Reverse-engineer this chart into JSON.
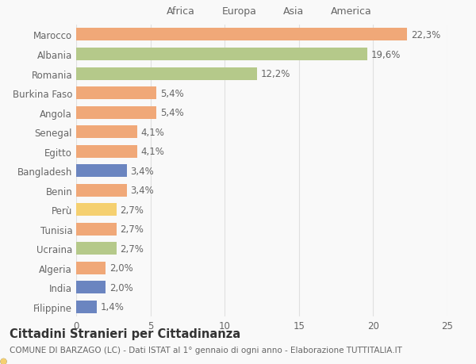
{
  "countries": [
    "Marocco",
    "Albania",
    "Romania",
    "Burkina Faso",
    "Angola",
    "Senegal",
    "Egitto",
    "Bangladesh",
    "Benin",
    "Perù",
    "Tunisia",
    "Ucraina",
    "Algeria",
    "India",
    "Filippine"
  ],
  "values": [
    22.3,
    19.6,
    12.2,
    5.4,
    5.4,
    4.1,
    4.1,
    3.4,
    3.4,
    2.7,
    2.7,
    2.7,
    2.0,
    2.0,
    1.4
  ],
  "labels": [
    "22,3%",
    "19,6%",
    "12,2%",
    "5,4%",
    "5,4%",
    "4,1%",
    "4,1%",
    "3,4%",
    "3,4%",
    "2,7%",
    "2,7%",
    "2,7%",
    "2,0%",
    "2,0%",
    "1,4%"
  ],
  "continents": [
    "Africa",
    "Europa",
    "Europa",
    "Africa",
    "Africa",
    "Africa",
    "Africa",
    "Asia",
    "Africa",
    "America",
    "Africa",
    "Europa",
    "Africa",
    "Asia",
    "Asia"
  ],
  "continent_colors": {
    "Africa": "#F0A878",
    "Europa": "#B5C98A",
    "Asia": "#6B85C0",
    "America": "#F5D070"
  },
  "legend_order": [
    "Africa",
    "Europa",
    "Asia",
    "America"
  ],
  "xlim": [
    0,
    25
  ],
  "xticks": [
    0,
    5,
    10,
    15,
    20,
    25
  ],
  "background_color": "#f9f9f9",
  "title": "Cittadini Stranieri per Cittadinanza",
  "subtitle": "COMUNE DI BARZAGO (LC) - Dati ISTAT al 1° gennaio di ogni anno - Elaborazione TUTTITALIA.IT",
  "grid_color": "#e0e0e0",
  "text_color": "#666666",
  "label_fontsize": 8.5,
  "tick_fontsize": 8.5,
  "title_fontsize": 10.5,
  "subtitle_fontsize": 7.5
}
